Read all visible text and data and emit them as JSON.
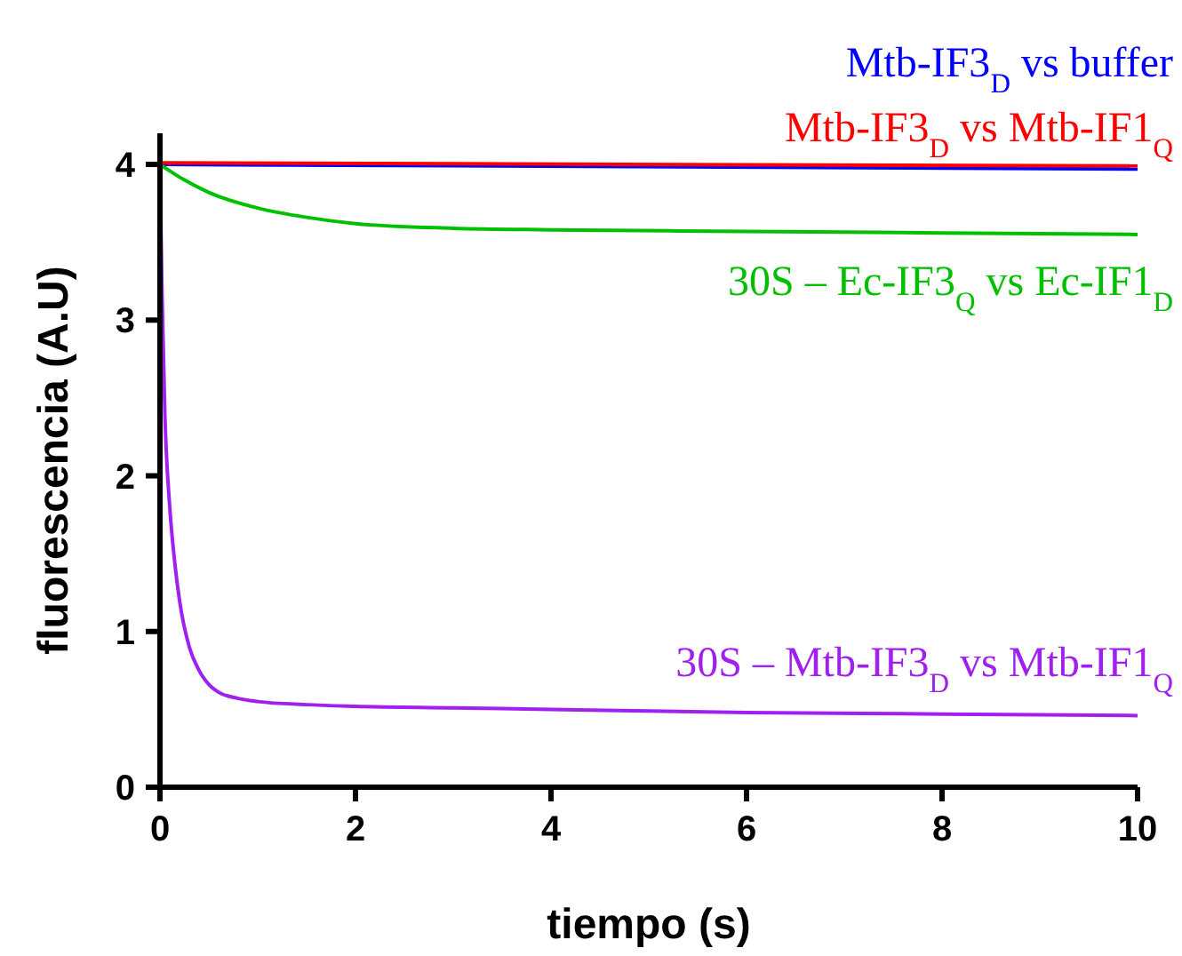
{
  "chart_data": {
    "type": "line",
    "xlabel": "tiempo (s)",
    "ylabel": "fluorescencia (A.U)",
    "xlim": [
      0,
      10
    ],
    "ylim": [
      0,
      4.2
    ],
    "xticks": [
      0,
      2,
      4,
      6,
      8,
      10
    ],
    "yticks": [
      0,
      1,
      2,
      3,
      4
    ],
    "grid": false,
    "line_style": "solid",
    "marker": "none",
    "series": [
      {
        "name": "Mtb-IF3$_{D}$ vs buffer",
        "color": "#0000ff",
        "x": [
          0,
          10
        ],
        "values": [
          4.0,
          3.97
        ]
      },
      {
        "name": "Mtb-IF3$_{D}$ vs Mtb-IF1$_{Q}$",
        "color": "#ff0000",
        "x": [
          0,
          10
        ],
        "values": [
          4.01,
          3.99
        ]
      },
      {
        "name": "30S – Ec-IF3$_{Q}$ vs Ec-IF1$_{D}$",
        "color": "#00c000",
        "x": [
          0,
          0.25,
          0.5,
          1,
          1.5,
          2,
          3,
          4,
          6,
          8,
          10
        ],
        "values": [
          4.0,
          3.9,
          3.82,
          3.72,
          3.66,
          3.62,
          3.59,
          3.58,
          3.57,
          3.56,
          3.55
        ]
      },
      {
        "name": "30S – Mtb-IF3$_{D}$ vs Mtb-IF1$_{Q}$",
        "color": "#a020f0",
        "x": [
          0,
          0.02,
          0.05,
          0.1,
          0.15,
          0.2,
          0.3,
          0.4,
          0.5,
          0.6,
          0.8,
          1,
          1.5,
          2,
          3,
          4,
          6,
          8,
          10
        ],
        "values": [
          4.0,
          3.2,
          2.4,
          1.8,
          1.45,
          1.2,
          0.9,
          0.75,
          0.66,
          0.61,
          0.57,
          0.55,
          0.53,
          0.52,
          0.51,
          0.5,
          0.48,
          0.47,
          0.46
        ]
      }
    ]
  }
}
